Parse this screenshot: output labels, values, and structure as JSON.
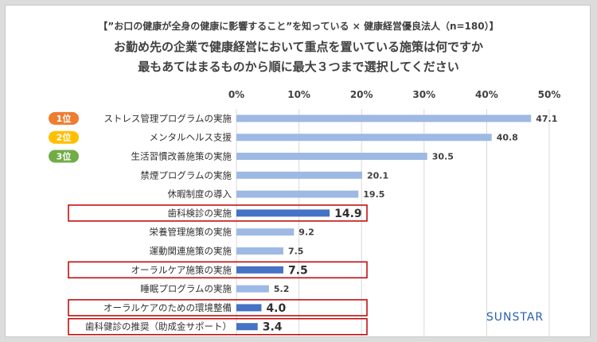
{
  "chart_data": {
    "type": "bar",
    "orientation": "horizontal",
    "title_lines": [
      "【”お口の健康が全身の健康に影響すること”を知っている × 健康経営優良法人（n=180）】",
      "お勤め先の企業で健康経営において重点を置いている施策は何ですか",
      "最もあてはまるものから順に最大３つまで選択してください"
    ],
    "categories": [
      "ストレス管理プログラムの実施",
      "メンタルヘルス支援",
      "生活習慣改善施策の実施",
      "禁煙プログラムの実施",
      "休暇制度の導入",
      "歯科検診の実施",
      "栄養管理施策の実施",
      "運動関連施策の実施",
      "オーラルケア施策の実施",
      "睡眠プログラムの実施",
      "オーラルケアのための環境整備",
      "歯科健診の推奨（助成金サポート）"
    ],
    "values": [
      47.1,
      40.8,
      30.5,
      20.1,
      19.5,
      14.9,
      9.2,
      7.5,
      7.5,
      5.2,
      4.0,
      3.4
    ],
    "value_labels": [
      "47.1",
      "40.8",
      "30.5",
      "20.1",
      "19.5",
      "14.9",
      "9.2",
      "7.5",
      "7.5",
      "5.2",
      "4.0",
      "3.4"
    ],
    "highlighted": [
      false,
      false,
      false,
      false,
      false,
      true,
      false,
      false,
      true,
      false,
      true,
      true
    ],
    "xlim": [
      0,
      50
    ],
    "xticks": [
      0,
      10,
      20,
      30,
      40,
      50
    ],
    "xtick_labels": [
      "0%",
      "10%",
      "20%",
      "30%",
      "40%",
      "50%"
    ],
    "ranks": [
      {
        "label": "1位",
        "color": "#ed7d31"
      },
      {
        "label": "2位",
        "color": "#ffc000"
      },
      {
        "label": "3位",
        "color": "#70ad47"
      }
    ],
    "bar_color": "#9db9e4",
    "highlight_color": "#4472c4",
    "highlight_box_color": "#c00000",
    "grid": true
  },
  "brand": {
    "logo_text": "SUNSTAR",
    "color": "#2a5fae"
  }
}
